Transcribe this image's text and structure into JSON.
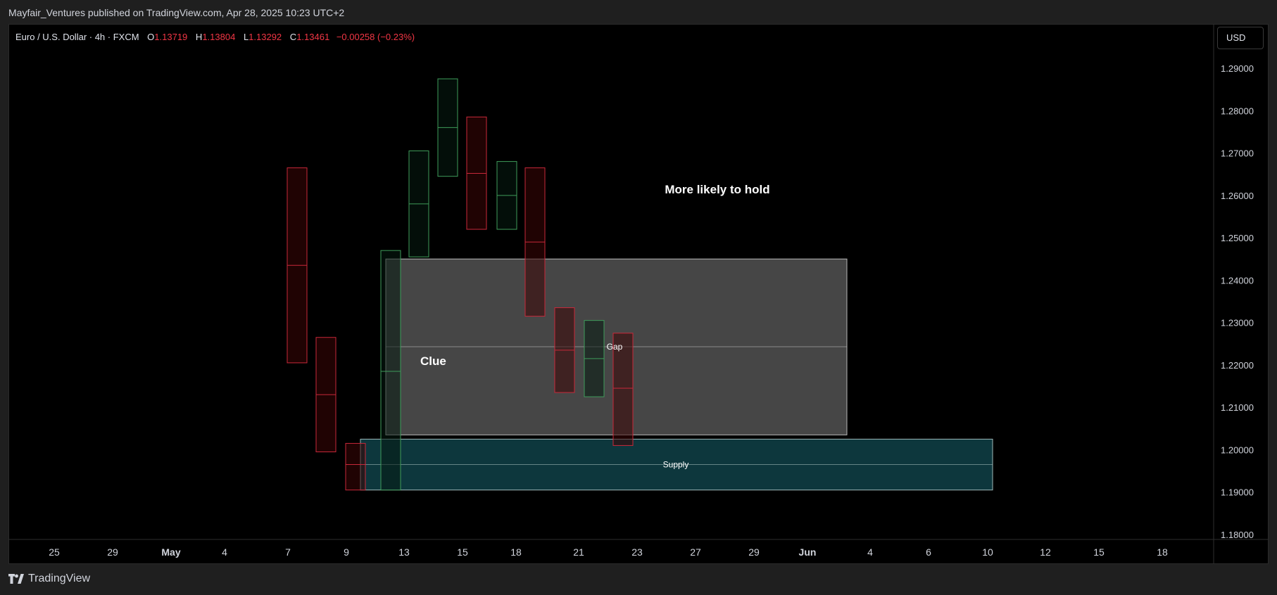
{
  "publication": {
    "text": "Mayfair_Ventures published on TradingView.com, Apr 28, 2025 10:23 UTC+2"
  },
  "legend": {
    "symbol": "Euro / U.S. Dollar · 4h · FXCM",
    "open_label": "O",
    "open": "1.13719",
    "high_label": "H",
    "high": "1.13804",
    "low_label": "L",
    "low": "1.13292",
    "close_label": "C",
    "close": "1.13461",
    "change": "−0.00258 (−0.23%)"
  },
  "currency_button": {
    "label": "USD"
  },
  "footer": {
    "brand": "TradingView"
  },
  "colors": {
    "background": "#000000",
    "bear_fill": "#3a0606",
    "bear_border": "#c8283a",
    "bull_fill": "#061a10",
    "bull_border": "#3f9c5a",
    "gap_zone": "#4a4a4a",
    "supply_zone": "#0e3a40"
  },
  "chart_data": {
    "type": "candlestick",
    "y_axis": {
      "ticks": [
        "1.29000",
        "1.28000",
        "1.27000",
        "1.26000",
        "1.25000",
        "1.24000",
        "1.23000",
        "1.22000",
        "1.21000",
        "1.20000",
        "1.19000",
        "1.18000"
      ],
      "range": [
        1.178,
        1.296
      ]
    },
    "x_axis": {
      "ticks": [
        {
          "label": "25",
          "bold": false
        },
        {
          "label": "29",
          "bold": false
        },
        {
          "label": "May",
          "bold": true
        },
        {
          "label": "4",
          "bold": false
        },
        {
          "label": "7",
          "bold": false
        },
        {
          "label": "9",
          "bold": false
        },
        {
          "label": "13",
          "bold": false
        },
        {
          "label": "15",
          "bold": false
        },
        {
          "label": "18",
          "bold": false
        },
        {
          "label": "21",
          "bold": false
        },
        {
          "label": "23",
          "bold": false
        },
        {
          "label": "27",
          "bold": false
        },
        {
          "label": "29",
          "bold": false
        },
        {
          "label": "Jun",
          "bold": true
        },
        {
          "label": "4",
          "bold": false
        },
        {
          "label": "6",
          "bold": false
        },
        {
          "label": "10",
          "bold": false
        },
        {
          "label": "12",
          "bold": false
        },
        {
          "label": "15",
          "bold": false
        },
        {
          "label": "18",
          "bold": false
        }
      ]
    },
    "candles": [
      {
        "slot": 0,
        "open": 1.2665,
        "close": 1.2205,
        "mid": 1.2435,
        "dir": "bear"
      },
      {
        "slot": 1,
        "open": 1.2265,
        "close": 1.1995,
        "mid": 1.213,
        "dir": "bear"
      },
      {
        "slot": 2,
        "open": 1.2015,
        "close": 1.1905,
        "mid": 1.1965,
        "dir": "bear"
      },
      {
        "slot": 3,
        "open": 1.1905,
        "close": 1.247,
        "mid": 1.2185,
        "dir": "bull"
      },
      {
        "slot": 4,
        "open": 1.2455,
        "close": 1.2705,
        "mid": 1.258,
        "dir": "bull"
      },
      {
        "slot": 5,
        "open": 1.2645,
        "close": 1.2875,
        "mid": 1.276,
        "dir": "bull"
      },
      {
        "slot": 6,
        "open": 1.2785,
        "close": 1.252,
        "mid": 1.2652,
        "dir": "bear"
      },
      {
        "slot": 7,
        "open": 1.252,
        "close": 1.268,
        "mid": 1.26,
        "dir": "bull"
      },
      {
        "slot": 8,
        "open": 1.2665,
        "close": 1.2315,
        "mid": 1.249,
        "dir": "bear"
      },
      {
        "slot": 9,
        "open": 1.2335,
        "close": 1.2135,
        "mid": 1.2235,
        "dir": "bear"
      },
      {
        "slot": 10,
        "open": 1.2125,
        "close": 1.2305,
        "mid": 1.2215,
        "dir": "bull"
      },
      {
        "slot": 11,
        "open": 1.2275,
        "close": 1.201,
        "mid": 1.2145,
        "dir": "bear"
      }
    ],
    "zones": [
      {
        "name": "gap",
        "label": "Gap",
        "top": 1.245,
        "bottom": 1.2035,
        "mid": 1.2243
      },
      {
        "name": "supply",
        "label": "Supply",
        "top": 1.2025,
        "bottom": 1.1905,
        "mid": 1.1965
      }
    ],
    "annotations": [
      {
        "text": "More likely to hold",
        "price": 1.2615
      },
      {
        "text": "Clue",
        "price": 1.221
      }
    ]
  }
}
